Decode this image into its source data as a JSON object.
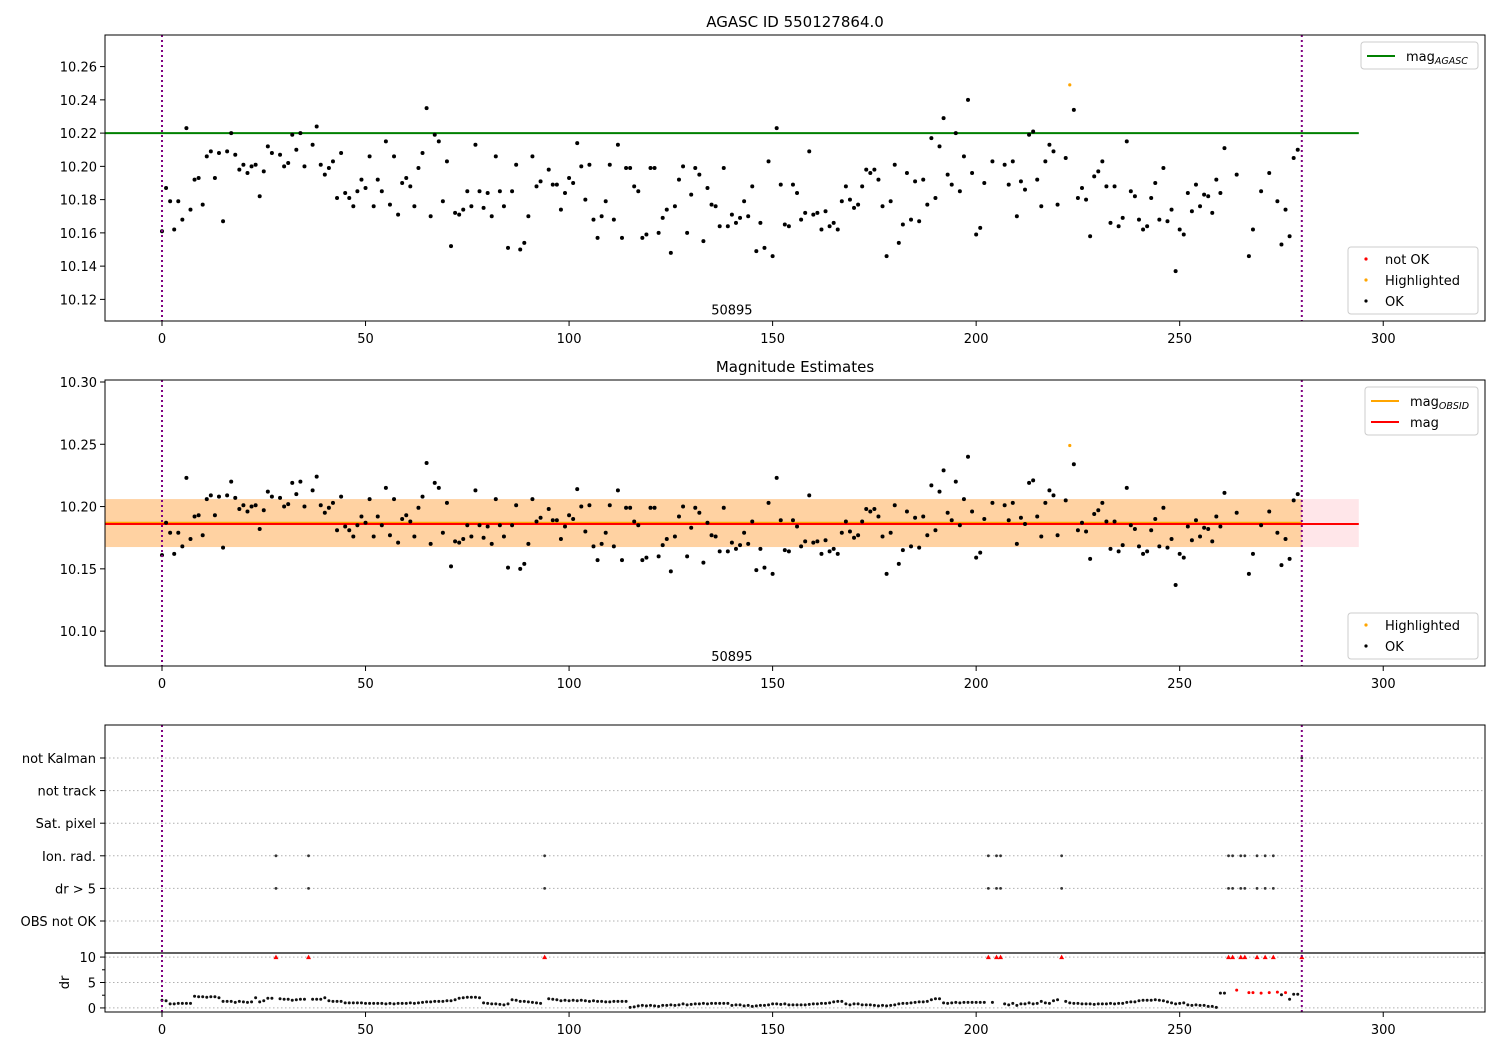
{
  "chart_data": [
    {
      "type": "scatter",
      "title": "AGASC ID 550127864.0",
      "xlim": [
        -14,
        325
      ],
      "ylim": [
        10.107,
        10.279
      ],
      "xticks": [
        0,
        50,
        100,
        150,
        200,
        250,
        300
      ],
      "xticklabels": [
        "0",
        "50",
        "100",
        "150",
        "200",
        "250",
        "300"
      ],
      "yticks": [
        10.12,
        10.14,
        10.16,
        10.18,
        10.2,
        10.22,
        10.24,
        10.26
      ],
      "yticklabels": [
        "10.12",
        "10.14",
        "10.16",
        "10.18",
        "10.20",
        "10.22",
        "10.24",
        "10.26"
      ],
      "vlines": [
        0,
        280
      ],
      "annotation": {
        "text": "50895",
        "x": 140,
        "y": 10.111
      },
      "hlines": [
        {
          "name": "mag_AGASC",
          "y": 10.22,
          "x": [
            -14,
            294
          ],
          "color": "#008000"
        }
      ],
      "highlighted_index": 223,
      "legend_lines": [
        {
          "label": "mag",
          "sub": "AGASC",
          "color": "#008000"
        }
      ],
      "legend_points": [
        {
          "label": "not OK",
          "color": "#ff0000"
        },
        {
          "label": "Highlighted",
          "color": "#ffa500"
        },
        {
          "label": "OK",
          "color": "#000000"
        }
      ]
    },
    {
      "type": "scatter",
      "title": "Magnitude Estimates",
      "xlim": [
        -14,
        325
      ],
      "ylim": [
        10.072,
        10.3016
      ],
      "xticks": [
        0,
        50,
        100,
        150,
        200,
        250,
        300
      ],
      "xticklabels": [
        "0",
        "50",
        "100",
        "150",
        "200",
        "250",
        "300"
      ],
      "yticks": [
        10.1,
        10.15,
        10.2,
        10.25,
        10.3
      ],
      "yticklabels": [
        "10.10",
        "10.15",
        "10.20",
        "10.25",
        "10.30"
      ],
      "vlines": [
        0,
        280
      ],
      "annotation": {
        "text": "50895",
        "x": 140,
        "y": 10.076
      },
      "bands": [
        {
          "name": "mag-band",
          "y": [
            10.1675,
            10.206
          ],
          "x": [
            -14,
            294
          ],
          "color": "#ffb6c1"
        },
        {
          "name": "mag-obsid-band",
          "y": [
            10.1675,
            10.206
          ],
          "x": [
            -14,
            280
          ],
          "color": "#ffa500"
        }
      ],
      "hlines": [
        {
          "name": "mag_OBSID",
          "y": 10.187,
          "x": [
            -14,
            280
          ],
          "color": "#ffa500"
        },
        {
          "name": "mag",
          "y": 10.186,
          "x": [
            -14,
            294
          ],
          "color": "#ff0000"
        }
      ],
      "highlighted_index": 223,
      "legend_lines": [
        {
          "label": "mag",
          "sub": "OBSID",
          "color": "#ffa500"
        },
        {
          "label": "mag",
          "sub": "",
          "color": "#ff0000"
        }
      ],
      "legend_points": [
        {
          "label": "Highlighted",
          "color": "#ffa500"
        },
        {
          "label": "OK",
          "color": "#000000"
        }
      ]
    },
    {
      "type": "scatter",
      "xlim": [
        -14,
        325
      ],
      "xticks": [
        0,
        50,
        100,
        150,
        200,
        250,
        300
      ],
      "xticklabels": [
        "0",
        "50",
        "100",
        "150",
        "200",
        "250",
        "300"
      ],
      "vlines": [
        0,
        280
      ],
      "flag_categories": [
        "not Kalman",
        "not track",
        "Sat. pixel",
        "Ion. rad.",
        "dr > 5",
        "OBS not OK"
      ],
      "flags": {
        "not Kalman": [
          280
        ],
        "not track": [],
        "Sat. pixel": [],
        "Ion. rad.": [
          28,
          36,
          94,
          203,
          205,
          206,
          221,
          262,
          263,
          265,
          266,
          269,
          271,
          273
        ],
        "dr > 5": [
          28,
          36,
          94,
          203,
          205,
          206,
          221,
          262,
          263,
          265,
          266,
          269,
          271,
          273
        ],
        "OBS not OK": []
      },
      "dr_ylabel": "dr",
      "dr_ylim": [
        -0.8,
        10.8
      ],
      "dr_yticks": [
        0,
        5,
        10
      ],
      "dr_yticklabels": [
        "0",
        "5",
        "10"
      ],
      "dr_red_indices": [
        264,
        267,
        268,
        270,
        272,
        274,
        276
      ],
      "dr_clipped_indices": [
        28,
        36,
        94,
        203,
        205,
        206,
        221,
        262,
        263,
        265,
        266,
        269,
        271,
        273,
        280
      ]
    }
  ],
  "mag_values": [
    10.161,
    10.187,
    10.179,
    10.162,
    10.179,
    10.168,
    10.223,
    10.174,
    10.192,
    10.193,
    10.177,
    10.206,
    10.209,
    10.193,
    10.208,
    10.167,
    10.209,
    10.22,
    10.207,
    10.198,
    10.201,
    10.196,
    10.2,
    10.201,
    10.182,
    10.197,
    10.212,
    10.208,
    null,
    10.207,
    10.2,
    10.202,
    10.219,
    10.21,
    10.22,
    10.2,
    null,
    10.213,
    10.224,
    10.201,
    10.195,
    10.199,
    10.203,
    10.181,
    10.208,
    10.184,
    10.181,
    10.176,
    10.185,
    10.192,
    10.187,
    10.206,
    10.176,
    10.192,
    10.185,
    10.215,
    10.177,
    10.206,
    10.171,
    10.19,
    10.193,
    10.188,
    10.176,
    10.199,
    10.208,
    10.235,
    10.17,
    10.219,
    10.215,
    10.179,
    10.203,
    10.152,
    10.172,
    10.171,
    10.174,
    10.185,
    10.176,
    10.213,
    10.185,
    10.175,
    10.184,
    10.17,
    10.206,
    10.185,
    10.176,
    10.151,
    10.185,
    10.201,
    10.15,
    10.154,
    10.17,
    10.206,
    10.188,
    10.191,
    null,
    10.198,
    10.189,
    10.189,
    10.174,
    10.184,
    10.193,
    10.19,
    10.214,
    10.2,
    10.18,
    10.201,
    10.168,
    10.157,
    10.17,
    10.179,
    10.201,
    10.168,
    10.213,
    10.157,
    10.199,
    10.199,
    10.188,
    10.185,
    10.157,
    10.159,
    10.199,
    10.199,
    10.16,
    10.169,
    10.174,
    10.148,
    10.176,
    10.192,
    10.2,
    10.16,
    10.183,
    10.199,
    10.195,
    10.155,
    10.187,
    10.177,
    10.176,
    10.164,
    10.199,
    10.164,
    10.171,
    10.166,
    10.169,
    10.179,
    10.17,
    10.188,
    10.149,
    10.166,
    10.151,
    10.203,
    10.146,
    10.223,
    10.189,
    10.165,
    10.164,
    10.189,
    10.184,
    10.168,
    10.172,
    10.209,
    10.171,
    10.172,
    10.162,
    10.173,
    10.164,
    10.166,
    10.162,
    10.179,
    10.188,
    10.18,
    10.175,
    10.177,
    10.188,
    10.198,
    10.196,
    10.198,
    10.192,
    10.176,
    10.146,
    10.179,
    10.201,
    10.154,
    10.165,
    10.196,
    10.168,
    10.191,
    10.167,
    10.192,
    10.177,
    10.217,
    10.181,
    10.212,
    10.229,
    10.195,
    10.189,
    10.22,
    10.185,
    10.206,
    10.24,
    10.196,
    10.159,
    10.163,
    10.19,
    null,
    10.203,
    null,
    null,
    10.201,
    10.189,
    10.203,
    10.17,
    10.191,
    10.186,
    10.219,
    10.221,
    10.192,
    10.176,
    10.203,
    10.213,
    10.209,
    10.177,
    null,
    10.205,
    10.249,
    10.234,
    10.181,
    10.187,
    10.18,
    10.158,
    10.194,
    10.197,
    10.203,
    10.188,
    10.166,
    10.188,
    10.164,
    10.169,
    10.215,
    10.185,
    10.182,
    10.168,
    10.162,
    10.164,
    10.181,
    10.19,
    10.168,
    10.199,
    10.167,
    10.174,
    10.137,
    10.162,
    10.159,
    10.184,
    10.173,
    10.189,
    10.176,
    10.183,
    10.182,
    10.172,
    10.192,
    10.184,
    10.211,
    null,
    null,
    10.195,
    null,
    null,
    10.146,
    10.162,
    null,
    10.185,
    null,
    10.196,
    null,
    10.179,
    10.153,
    10.174,
    10.158,
    10.205,
    10.21,
    null
  ],
  "dr_values": [
    1.5,
    1.4,
    0.8,
    0.8,
    0.9,
    0.9,
    0.9,
    0.9,
    2.3,
    2.2,
    2.2,
    2.1,
    2.2,
    2.2,
    2.0,
    1.3,
    1.3,
    1.3,
    1.1,
    1.3,
    1.2,
    1.1,
    1.2,
    2.0,
    1.2,
    1.4,
    1.9,
    1.9,
    10,
    1.8,
    1.7,
    1.7,
    1.5,
    1.6,
    1.7,
    1.7,
    10,
    1.7,
    1.7,
    1.7,
    2.0,
    1.4,
    1.3,
    1.3,
    1.3,
    1.0,
    1.0,
    1.0,
    1.0,
    1.0,
    0.9,
    0.9,
    0.9,
    0.9,
    0.9,
    0.8,
    0.9,
    0.8,
    0.9,
    0.9,
    0.9,
    1.0,
    0.9,
    1.0,
    1.1,
    1.2,
    1.2,
    1.3,
    1.3,
    1.3,
    1.4,
    1.4,
    1.6,
    1.9,
    2.0,
    2.1,
    2.1,
    2.1,
    2.0,
    1.0,
    0.9,
    0.8,
    0.8,
    0.7,
    0.6,
    0.8,
    1.6,
    1.5,
    1.3,
    1.3,
    1.2,
    1.1,
    1.0,
    0.9,
    10,
    1.8,
    1.7,
    1.6,
    1.4,
    1.5,
    1.4,
    1.5,
    1.4,
    1.5,
    1.4,
    1.3,
    1.4,
    1.3,
    1.3,
    1.2,
    1.2,
    1.3,
    1.3,
    1.3,
    1.3,
    0.1,
    0.2,
    0.4,
    0.5,
    0.4,
    0.5,
    0.4,
    0.3,
    0.5,
    0.5,
    0.6,
    0.5,
    0.6,
    0.8,
    0.6,
    0.7,
    0.8,
    0.8,
    0.9,
    0.8,
    0.9,
    0.9,
    0.9,
    0.9,
    0.9,
    0.5,
    0.6,
    0.6,
    0.4,
    0.5,
    0.3,
    0.4,
    0.5,
    0.5,
    0.6,
    0.8,
    0.8,
    0.7,
    0.8,
    0.6,
    0.6,
    0.6,
    0.6,
    0.6,
    0.7,
    0.8,
    0.8,
    0.9,
    0.9,
    1.0,
    1.2,
    1.3,
    1.3,
    0.8,
    0.6,
    0.8,
    0.8,
    0.6,
    0.6,
    0.6,
    0.5,
    0.4,
    0.5,
    0.4,
    0.5,
    0.6,
    0.8,
    0.9,
    0.9,
    1.0,
    1.1,
    1.2,
    1.2,
    1.3,
    1.6,
    1.8,
    1.8,
    1.0,
    0.9,
    1.0,
    1.1,
    1.0,
    1.1,
    1.1,
    1.1,
    1.1,
    1.1,
    1.1,
    10,
    1.1,
    10,
    10,
    0.8,
    0.6,
    0.9,
    0.5,
    0.8,
    0.8,
    1.0,
    0.8,
    0.9,
    1.3,
    1.0,
    0.9,
    1.4,
    1.6,
    10,
    1.3,
    1.0,
    0.9,
    0.9,
    0.8,
    0.8,
    0.8,
    0.7,
    0.8,
    0.8,
    0.8,
    0.9,
    0.8,
    0.9,
    0.9,
    1.1,
    1.2,
    1.2,
    1.4,
    1.5,
    1.5,
    1.5,
    1.6,
    1.5,
    1.4,
    1.2,
    1.0,
    0.8,
    0.9,
    1.0,
    0.6,
    0.5,
    0.6,
    0.5,
    0.5,
    0.3,
    0.3,
    0.1,
    2.9,
    2.9,
    10,
    10,
    3.5,
    10,
    10,
    3.0,
    3.0,
    10,
    2.9,
    10,
    3.0,
    10,
    3.1,
    2.6,
    3.0,
    1.7,
    2.7,
    2.7,
    10
  ]
}
